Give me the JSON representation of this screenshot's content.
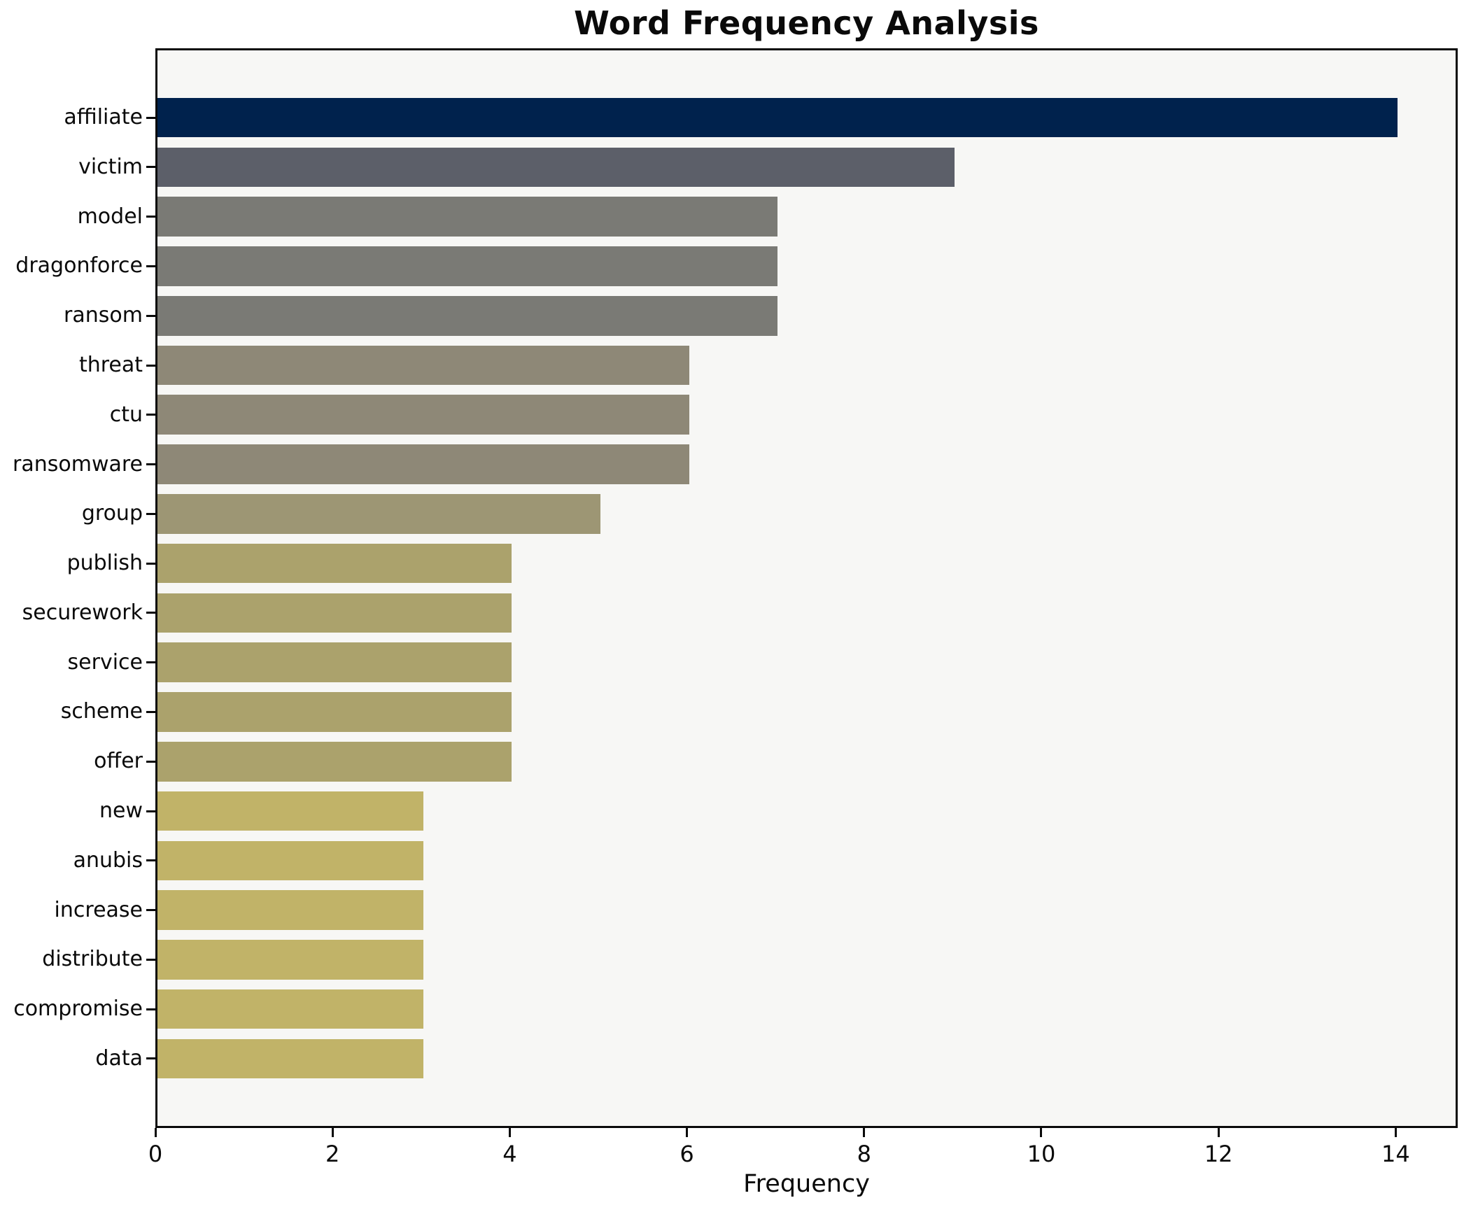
{
  "title": "Word Frequency Analysis",
  "xlabel": "Frequency",
  "chart_data": {
    "type": "bar",
    "orientation": "horizontal",
    "title": "Word Frequency Analysis",
    "xlabel": "Frequency",
    "ylabel": "",
    "categories": [
      "affiliate",
      "victim",
      "model",
      "dragonforce",
      "ransom",
      "threat",
      "ctu",
      "ransomware",
      "group",
      "publish",
      "securework",
      "service",
      "scheme",
      "offer",
      "new",
      "anubis",
      "increase",
      "distribute",
      "compromise",
      "data"
    ],
    "values": [
      14,
      9,
      7,
      7,
      7,
      6,
      6,
      6,
      5,
      4,
      4,
      4,
      4,
      4,
      3,
      3,
      3,
      3,
      3,
      3
    ],
    "bar_colors": [
      "#00224d",
      "#5c5f69",
      "#7a7a75",
      "#7a7a75",
      "#7a7a75",
      "#8e8877",
      "#8e8877",
      "#8e8877",
      "#9d9674",
      "#aba26c",
      "#aba26c",
      "#aba26c",
      "#aba26c",
      "#aba26c",
      "#c1b368",
      "#c1b368",
      "#c1b368",
      "#c1b368",
      "#c1b368",
      "#c1b368"
    ],
    "xlim": [
      0,
      14.7
    ],
    "xticks": [
      0,
      2,
      4,
      6,
      8,
      10,
      12,
      14
    ],
    "grid": false,
    "legend": null,
    "colormap": "cividis",
    "plot_bg": "#f7f7f5",
    "fig_bg": "#ffffff",
    "spine_color": "#0a0a0a"
  }
}
